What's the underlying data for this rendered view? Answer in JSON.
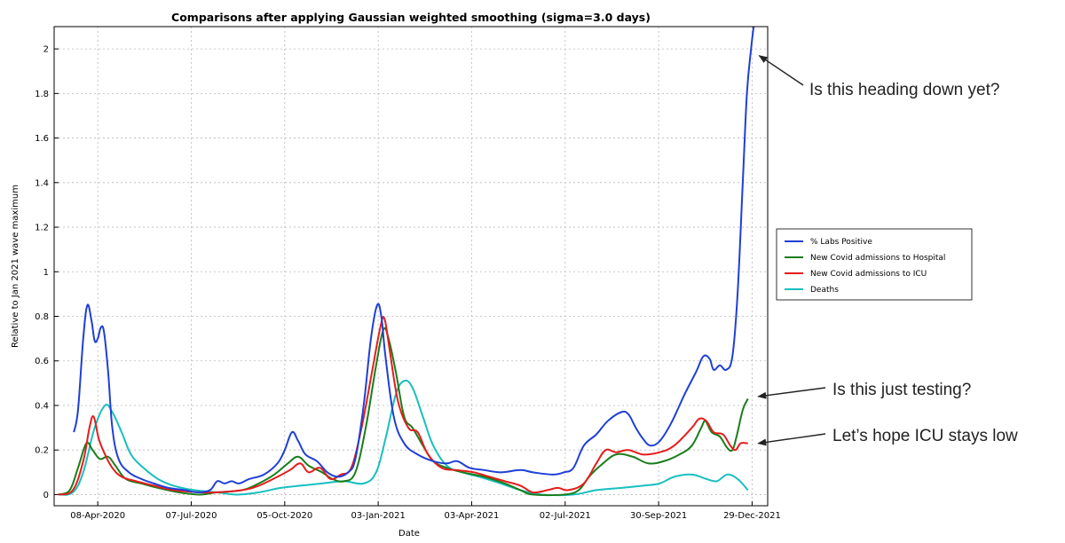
{
  "chart_data": {
    "type": "line",
    "title": "Comparisons after applying Gaussian weighted smoothing (sigma=3.0 days)",
    "xlabel": "Date",
    "ylabel": "Relative to Jan 2021 wave maximum",
    "x_ticks": [
      "08-Apr-2020",
      "07-Jul-2020",
      "05-Oct-2020",
      "03-Jan-2021",
      "03-Apr-2021",
      "02-Jul-2021",
      "30-Sep-2021",
      "29-Dec-2021"
    ],
    "y_ticks": [
      "0",
      "0.2",
      "0.4",
      "0.6",
      "0.8",
      "1",
      "1.2",
      "1.4",
      "1.6",
      "1.8",
      "2"
    ],
    "xlim": [
      "2020-02-26",
      "2022-01-13"
    ],
    "ylim": [
      -0.05,
      2.1
    ],
    "grid": true,
    "legend_position": "right",
    "series": [
      {
        "name": "% Labs Positive",
        "color": "#1f3fd6",
        "points": [
          [
            "2020-03-16",
            0.28
          ],
          [
            "2020-03-20",
            0.38
          ],
          [
            "2020-03-25",
            0.7
          ],
          [
            "2020-03-29",
            0.85
          ],
          [
            "2020-04-02",
            0.78
          ],
          [
            "2020-04-05",
            0.69
          ],
          [
            "2020-04-08",
            0.7
          ],
          [
            "2020-04-11",
            0.75
          ],
          [
            "2020-04-14",
            0.73
          ],
          [
            "2020-04-18",
            0.55
          ],
          [
            "2020-04-22",
            0.3
          ],
          [
            "2020-04-28",
            0.16
          ],
          [
            "2020-05-08",
            0.1
          ],
          [
            "2020-05-20",
            0.07
          ],
          [
            "2020-06-01",
            0.05
          ],
          [
            "2020-06-15",
            0.03
          ],
          [
            "2020-07-01",
            0.02
          ],
          [
            "2020-07-13",
            0.01
          ],
          [
            "2020-07-25",
            0.02
          ],
          [
            "2020-08-01",
            0.06
          ],
          [
            "2020-08-08",
            0.05
          ],
          [
            "2020-08-15",
            0.06
          ],
          [
            "2020-08-22",
            0.05
          ],
          [
            "2020-09-01",
            0.07
          ],
          [
            "2020-09-15",
            0.09
          ],
          [
            "2020-09-28",
            0.14
          ],
          [
            "2020-10-05",
            0.2
          ],
          [
            "2020-10-12",
            0.28
          ],
          [
            "2020-10-18",
            0.24
          ],
          [
            "2020-10-25",
            0.18
          ],
          [
            "2020-11-05",
            0.15
          ],
          [
            "2020-11-15",
            0.1
          ],
          [
            "2020-11-25",
            0.08
          ],
          [
            "2020-12-05",
            0.1
          ],
          [
            "2020-12-12",
            0.16
          ],
          [
            "2020-12-20",
            0.4
          ],
          [
            "2020-12-27",
            0.7
          ],
          [
            "2021-01-02",
            0.85
          ],
          [
            "2021-01-06",
            0.8
          ],
          [
            "2021-01-10",
            0.62
          ],
          [
            "2021-01-18",
            0.35
          ],
          [
            "2021-01-28",
            0.23
          ],
          [
            "2021-02-10",
            0.18
          ],
          [
            "2021-02-25",
            0.15
          ],
          [
            "2021-03-10",
            0.14
          ],
          [
            "2021-03-20",
            0.15
          ],
          [
            "2021-04-01",
            0.12
          ],
          [
            "2021-04-15",
            0.11
          ],
          [
            "2021-05-01",
            0.1
          ],
          [
            "2021-05-20",
            0.11
          ],
          [
            "2021-06-01",
            0.1
          ],
          [
            "2021-06-20",
            0.09
          ],
          [
            "2021-07-01",
            0.1
          ],
          [
            "2021-07-10",
            0.12
          ],
          [
            "2021-07-20",
            0.22
          ],
          [
            "2021-08-01",
            0.27
          ],
          [
            "2021-08-12",
            0.33
          ],
          [
            "2021-08-25",
            0.37
          ],
          [
            "2021-09-01",
            0.36
          ],
          [
            "2021-09-08",
            0.3
          ],
          [
            "2021-09-15",
            0.25
          ],
          [
            "2021-09-22",
            0.22
          ],
          [
            "2021-10-01",
            0.24
          ],
          [
            "2021-10-12",
            0.32
          ],
          [
            "2021-10-25",
            0.45
          ],
          [
            "2021-11-05",
            0.55
          ],
          [
            "2021-11-12",
            0.62
          ],
          [
            "2021-11-18",
            0.61
          ],
          [
            "2021-11-22",
            0.56
          ],
          [
            "2021-11-28",
            0.58
          ],
          [
            "2021-12-04",
            0.56
          ],
          [
            "2021-12-10",
            0.62
          ],
          [
            "2021-12-15",
            0.9
          ],
          [
            "2021-12-20",
            1.4
          ],
          [
            "2021-12-24",
            1.8
          ],
          [
            "2021-12-28",
            2.0
          ],
          [
            "2021-12-31",
            2.12
          ]
        ]
      },
      {
        "name": "New Covid admissions to Hospital",
        "color": "#1a7d1a",
        "points": [
          [
            "2020-03-01",
            0.0
          ],
          [
            "2020-03-12",
            0.02
          ],
          [
            "2020-03-20",
            0.12
          ],
          [
            "2020-03-28",
            0.23
          ],
          [
            "2020-04-03",
            0.2
          ],
          [
            "2020-04-10",
            0.16
          ],
          [
            "2020-04-18",
            0.17
          ],
          [
            "2020-04-25",
            0.13
          ],
          [
            "2020-05-05",
            0.07
          ],
          [
            "2020-05-20",
            0.05
          ],
          [
            "2020-06-05",
            0.03
          ],
          [
            "2020-06-25",
            0.01
          ],
          [
            "2020-07-15",
            0.0
          ],
          [
            "2020-08-01",
            0.01
          ],
          [
            "2020-08-25",
            0.02
          ],
          [
            "2020-09-10",
            0.05
          ],
          [
            "2020-09-25",
            0.09
          ],
          [
            "2020-10-08",
            0.14
          ],
          [
            "2020-10-18",
            0.17
          ],
          [
            "2020-10-28",
            0.13
          ],
          [
            "2020-11-10",
            0.1
          ],
          [
            "2020-11-20",
            0.07
          ],
          [
            "2020-12-01",
            0.06
          ],
          [
            "2020-12-12",
            0.1
          ],
          [
            "2020-12-22",
            0.3
          ],
          [
            "2021-01-01",
            0.58
          ],
          [
            "2021-01-08",
            0.74
          ],
          [
            "2021-01-13",
            0.7
          ],
          [
            "2021-01-20",
            0.55
          ],
          [
            "2021-01-28",
            0.35
          ],
          [
            "2021-02-05",
            0.3
          ],
          [
            "2021-02-15",
            0.22
          ],
          [
            "2021-02-25",
            0.15
          ],
          [
            "2021-03-10",
            0.12
          ],
          [
            "2021-03-25",
            0.1
          ],
          [
            "2021-04-15",
            0.08
          ],
          [
            "2021-05-05",
            0.05
          ],
          [
            "2021-05-20",
            0.02
          ],
          [
            "2021-06-01",
            0.0
          ],
          [
            "2021-07-01",
            0.0
          ],
          [
            "2021-07-15",
            0.02
          ],
          [
            "2021-07-25",
            0.08
          ],
          [
            "2021-08-05",
            0.13
          ],
          [
            "2021-08-20",
            0.18
          ],
          [
            "2021-09-05",
            0.17
          ],
          [
            "2021-09-20",
            0.14
          ],
          [
            "2021-10-05",
            0.15
          ],
          [
            "2021-10-20",
            0.18
          ],
          [
            "2021-11-01",
            0.22
          ],
          [
            "2021-11-10",
            0.3
          ],
          [
            "2021-11-14",
            0.33
          ],
          [
            "2021-11-20",
            0.28
          ],
          [
            "2021-11-28",
            0.26
          ],
          [
            "2021-12-05",
            0.21
          ],
          [
            "2021-12-10",
            0.2
          ],
          [
            "2021-12-14",
            0.26
          ],
          [
            "2021-12-20",
            0.38
          ],
          [
            "2021-12-25",
            0.43
          ]
        ]
      },
      {
        "name": "New Covid admissions to ICU",
        "color": "#e61c1c",
        "points": [
          [
            "2020-03-01",
            0.0
          ],
          [
            "2020-03-15",
            0.02
          ],
          [
            "2020-03-25",
            0.15
          ],
          [
            "2020-03-31",
            0.3
          ],
          [
            "2020-04-04",
            0.35
          ],
          [
            "2020-04-09",
            0.25
          ],
          [
            "2020-04-15",
            0.18
          ],
          [
            "2020-04-22",
            0.12
          ],
          [
            "2020-05-01",
            0.08
          ],
          [
            "2020-05-15",
            0.06
          ],
          [
            "2020-06-01",
            0.04
          ],
          [
            "2020-06-20",
            0.02
          ],
          [
            "2020-07-15",
            0.01
          ],
          [
            "2020-08-01",
            0.01
          ],
          [
            "2020-08-25",
            0.02
          ],
          [
            "2020-09-10",
            0.04
          ],
          [
            "2020-09-28",
            0.08
          ],
          [
            "2020-10-10",
            0.11
          ],
          [
            "2020-10-20",
            0.14
          ],
          [
            "2020-10-28",
            0.1
          ],
          [
            "2020-11-08",
            0.12
          ],
          [
            "2020-11-18",
            0.07
          ],
          [
            "2020-11-28",
            0.09
          ],
          [
            "2020-12-08",
            0.12
          ],
          [
            "2020-12-18",
            0.3
          ],
          [
            "2020-12-28",
            0.55
          ],
          [
            "2021-01-05",
            0.75
          ],
          [
            "2021-01-09",
            0.79
          ],
          [
            "2021-01-14",
            0.65
          ],
          [
            "2021-01-22",
            0.42
          ],
          [
            "2021-02-01",
            0.3
          ],
          [
            "2021-02-10",
            0.28
          ],
          [
            "2021-02-20",
            0.18
          ],
          [
            "2021-03-05",
            0.12
          ],
          [
            "2021-03-20",
            0.11
          ],
          [
            "2021-04-05",
            0.1
          ],
          [
            "2021-04-20",
            0.08
          ],
          [
            "2021-05-05",
            0.06
          ],
          [
            "2021-05-20",
            0.04
          ],
          [
            "2021-06-01",
            0.01
          ],
          [
            "2021-06-15",
            0.02
          ],
          [
            "2021-06-25",
            0.03
          ],
          [
            "2021-07-05",
            0.02
          ],
          [
            "2021-07-20",
            0.05
          ],
          [
            "2021-08-01",
            0.14
          ],
          [
            "2021-08-10",
            0.2
          ],
          [
            "2021-08-20",
            0.19
          ],
          [
            "2021-09-01",
            0.2
          ],
          [
            "2021-09-15",
            0.18
          ],
          [
            "2021-10-01",
            0.19
          ],
          [
            "2021-10-15",
            0.22
          ],
          [
            "2021-11-01",
            0.3
          ],
          [
            "2021-11-08",
            0.34
          ],
          [
            "2021-11-15",
            0.33
          ],
          [
            "2021-11-22",
            0.28
          ],
          [
            "2021-12-01",
            0.27
          ],
          [
            "2021-12-08",
            0.22
          ],
          [
            "2021-12-13",
            0.2
          ],
          [
            "2021-12-18",
            0.23
          ],
          [
            "2021-12-25",
            0.23
          ]
        ]
      },
      {
        "name": "Deaths",
        "color": "#19bfbf",
        "points": [
          [
            "2020-03-01",
            0.0
          ],
          [
            "2020-03-15",
            0.01
          ],
          [
            "2020-03-25",
            0.1
          ],
          [
            "2020-04-05",
            0.3
          ],
          [
            "2020-04-15",
            0.4
          ],
          [
            "2020-04-22",
            0.37
          ],
          [
            "2020-05-01",
            0.28
          ],
          [
            "2020-05-10",
            0.18
          ],
          [
            "2020-05-22",
            0.12
          ],
          [
            "2020-06-05",
            0.07
          ],
          [
            "2020-06-20",
            0.04
          ],
          [
            "2020-07-10",
            0.02
          ],
          [
            "2020-08-01",
            0.01
          ],
          [
            "2020-08-20",
            0.0
          ],
          [
            "2020-09-10",
            0.01
          ],
          [
            "2020-10-01",
            0.03
          ],
          [
            "2020-10-20",
            0.04
          ],
          [
            "2020-11-10",
            0.05
          ],
          [
            "2020-12-01",
            0.06
          ],
          [
            "2020-12-20",
            0.05
          ],
          [
            "2021-01-01",
            0.1
          ],
          [
            "2021-01-10",
            0.25
          ],
          [
            "2021-01-20",
            0.45
          ],
          [
            "2021-01-28",
            0.51
          ],
          [
            "2021-02-05",
            0.48
          ],
          [
            "2021-02-15",
            0.35
          ],
          [
            "2021-02-25",
            0.22
          ],
          [
            "2021-03-10",
            0.13
          ],
          [
            "2021-03-25",
            0.1
          ],
          [
            "2021-04-10",
            0.08
          ],
          [
            "2021-05-01",
            0.05
          ],
          [
            "2021-05-20",
            0.02
          ],
          [
            "2021-06-10",
            0.0
          ],
          [
            "2021-07-10",
            0.0
          ],
          [
            "2021-08-01",
            0.02
          ],
          [
            "2021-08-25",
            0.03
          ],
          [
            "2021-09-15",
            0.04
          ],
          [
            "2021-10-01",
            0.05
          ],
          [
            "2021-10-15",
            0.08
          ],
          [
            "2021-11-01",
            0.09
          ],
          [
            "2021-11-15",
            0.07
          ],
          [
            "2021-11-25",
            0.06
          ],
          [
            "2021-12-05",
            0.09
          ],
          [
            "2021-12-15",
            0.07
          ],
          [
            "2021-12-25",
            0.02
          ]
        ]
      }
    ]
  },
  "annotations": [
    {
      "text": "Is this heading down yet?",
      "target": [
        "2021-12-29",
        1.97
      ]
    },
    {
      "text": "Is this just testing?",
      "target": [
        "2021-12-28",
        0.44
      ]
    },
    {
      "text": "Let’s hope ICU stays low",
      "target": [
        "2021-12-28",
        0.23
      ]
    }
  ]
}
